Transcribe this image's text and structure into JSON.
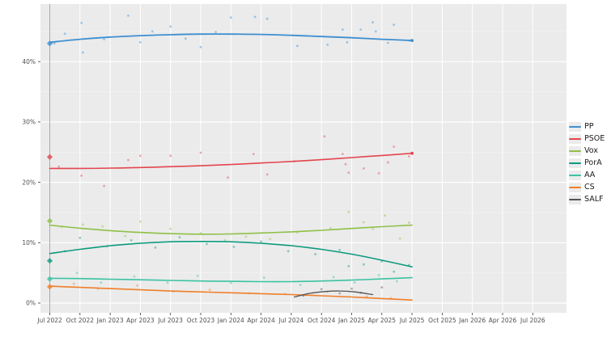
{
  "figure": {
    "title": "",
    "background": "#ffffff",
    "panel_background": "#ebebeb",
    "grid_major_color": "#ffffff",
    "grid_minor_color": "#f3f3f3",
    "axis_text_color": "#4f4f4f",
    "election_line_color": "#aaaaaa"
  },
  "chart_data": {
    "type": "scatter",
    "subtype": "poll-tracker with LOESS trend lines, poll scatter dots and election-result diamonds",
    "title": "",
    "xlabel": "",
    "ylabel": "",
    "x_tick_labels": [
      "Jul 2022",
      "Oct 2022",
      "Jan 2023",
      "Apr 2023",
      "Jul 2023",
      "Oct 2023",
      "Jan 2024",
      "Apr 2024",
      "Jul 2024",
      "Oct 2024",
      "Jan 2025",
      "Apr 2025",
      "Jul 2025",
      "Oct 2025",
      "Jan 2026",
      "Apr 2026",
      "Jul 2026"
    ],
    "y_tick_labels": [
      "0%",
      "10%",
      "20%",
      "30%",
      "40%"
    ],
    "y_tick_values": [
      0,
      10,
      20,
      30,
      40
    ],
    "ylim": [
      0,
      49.5
    ],
    "x_unit": "quarters since Jul 2022 (t=0 .. t=16)",
    "grid": true,
    "legend_position": "right-outside",
    "election_line_t": 0,
    "series": [
      {
        "name": "PP",
        "color": "#3d8fd1",
        "election_result": 43.0,
        "end_dot": 43.5,
        "trend_t": [
          0,
          1,
          2,
          3,
          4,
          5,
          6,
          7,
          8,
          9,
          10,
          11,
          12
        ],
        "trend": [
          43.2,
          43.7,
          44.05,
          44.3,
          44.45,
          44.55,
          44.55,
          44.5,
          44.35,
          44.15,
          43.95,
          43.7,
          43.5
        ],
        "scatter": [
          [
            0.15,
            43.0
          ],
          [
            0.5,
            44.6
          ],
          [
            1.05,
            46.4
          ],
          [
            1.1,
            41.5
          ],
          [
            1.8,
            43.7
          ],
          [
            2.6,
            47.6
          ],
          [
            3.0,
            43.2
          ],
          [
            3.4,
            45.0
          ],
          [
            4.0,
            45.8
          ],
          [
            4.5,
            43.8
          ],
          [
            5.0,
            42.4
          ],
          [
            5.5,
            44.9
          ],
          [
            6.0,
            47.3
          ],
          [
            6.8,
            47.4
          ],
          [
            7.2,
            47.1
          ],
          [
            8.2,
            42.6
          ],
          [
            9.2,
            42.8
          ],
          [
            9.7,
            45.3
          ],
          [
            9.85,
            43.2
          ],
          [
            10.3,
            45.3
          ],
          [
            10.7,
            46.5
          ],
          [
            10.8,
            45.0
          ],
          [
            11.2,
            43.1
          ],
          [
            11.4,
            46.1
          ],
          [
            11.9,
            43.5
          ]
        ]
      },
      {
        "name": "PSOE",
        "color": "#e4454f",
        "election_result": 24.2,
        "end_dot": 24.8,
        "trend_t": [
          0,
          1,
          2,
          3,
          4,
          5,
          6,
          7,
          8,
          9,
          10,
          11,
          12
        ],
        "trend": [
          22.3,
          22.3,
          22.35,
          22.45,
          22.6,
          22.75,
          22.95,
          23.2,
          23.45,
          23.75,
          24.1,
          24.45,
          24.8
        ],
        "scatter": [
          [
            0.3,
            22.6
          ],
          [
            1.05,
            21.1
          ],
          [
            1.8,
            19.4
          ],
          [
            2.6,
            23.7
          ],
          [
            3.0,
            24.4
          ],
          [
            4.0,
            24.4
          ],
          [
            5.0,
            24.9
          ],
          [
            5.9,
            20.8
          ],
          [
            6.75,
            24.7
          ],
          [
            7.2,
            21.3
          ],
          [
            8.1,
            23.5
          ],
          [
            9.1,
            27.6
          ],
          [
            9.7,
            24.7
          ],
          [
            9.8,
            23.0
          ],
          [
            9.9,
            21.6
          ],
          [
            10.4,
            22.3
          ],
          [
            10.9,
            21.5
          ],
          [
            11.2,
            23.3
          ],
          [
            11.4,
            25.9
          ],
          [
            11.9,
            24.3
          ]
        ]
      },
      {
        "name": "Vox",
        "color": "#8fc046",
        "election_result": 13.6,
        "end_dot": null,
        "trend_t": [
          0,
          1,
          2,
          3,
          4,
          5,
          6,
          7,
          8,
          9,
          10,
          11,
          12
        ],
        "trend": [
          12.9,
          12.4,
          12.0,
          11.7,
          11.5,
          11.4,
          11.45,
          11.6,
          11.8,
          12.05,
          12.35,
          12.65,
          12.9
        ],
        "scatter": [
          [
            0.4,
            12.6
          ],
          [
            1.1,
            13.0
          ],
          [
            1.75,
            12.7
          ],
          [
            2.5,
            11.1
          ],
          [
            3.0,
            13.5
          ],
          [
            4.0,
            12.3
          ],
          [
            5.0,
            11.6
          ],
          [
            5.8,
            10.4
          ],
          [
            6.5,
            11.0
          ],
          [
            7.3,
            10.6
          ],
          [
            8.2,
            11.7
          ],
          [
            9.3,
            12.4
          ],
          [
            9.9,
            15.1
          ],
          [
            10.4,
            13.4
          ],
          [
            10.7,
            12.3
          ],
          [
            11.1,
            14.5
          ],
          [
            11.6,
            10.7
          ],
          [
            11.9,
            13.3
          ]
        ]
      },
      {
        "name": "PorA",
        "color": "#0d9a7d",
        "election_result": 7.0,
        "end_dot": null,
        "trend_t": [
          0,
          1,
          2,
          3,
          4,
          5,
          6,
          7,
          8,
          9,
          10,
          11,
          12
        ],
        "trend": [
          8.2,
          8.9,
          9.5,
          9.9,
          10.15,
          10.2,
          10.15,
          9.9,
          9.5,
          8.9,
          8.1,
          7.1,
          6.0
        ],
        "scatter": [
          [
            0.5,
            8.6
          ],
          [
            1.0,
            10.8
          ],
          [
            1.9,
            9.4
          ],
          [
            2.7,
            10.4
          ],
          [
            3.5,
            9.2
          ],
          [
            4.3,
            10.9
          ],
          [
            5.2,
            9.8
          ],
          [
            6.1,
            9.3
          ],
          [
            7.0,
            10.2
          ],
          [
            7.9,
            8.6
          ],
          [
            8.8,
            8.1
          ],
          [
            9.6,
            8.8
          ],
          [
            9.9,
            6.1
          ],
          [
            10.4,
            6.4
          ],
          [
            11.0,
            6.9
          ],
          [
            11.4,
            5.2
          ],
          [
            11.9,
            6.3
          ]
        ]
      },
      {
        "name": "AA",
        "color": "#3bc3a2",
        "election_result": 4.0,
        "end_dot": null,
        "trend_t": [
          0,
          1,
          2,
          3,
          4,
          5,
          6,
          7,
          8,
          9,
          10,
          11,
          12
        ],
        "trend": [
          4.1,
          4.05,
          3.95,
          3.85,
          3.75,
          3.65,
          3.6,
          3.55,
          3.55,
          3.65,
          3.8,
          4.0,
          4.2
        ],
        "scatter": [
          [
            0.9,
            5.0
          ],
          [
            1.7,
            3.4
          ],
          [
            2.8,
            4.4
          ],
          [
            3.9,
            3.4
          ],
          [
            4.9,
            4.5
          ],
          [
            6.0,
            3.3
          ],
          [
            7.1,
            4.2
          ],
          [
            8.3,
            3.0
          ],
          [
            9.4,
            4.3
          ],
          [
            10.1,
            3.4
          ],
          [
            10.9,
            4.6
          ],
          [
            11.5,
            3.6
          ]
        ]
      },
      {
        "name": "CS",
        "color": "#ef7f2a",
        "election_result": 2.7,
        "end_dot": null,
        "trend_t": [
          0,
          1,
          2,
          3,
          4,
          5,
          6,
          7,
          8,
          9,
          10,
          11,
          12
        ],
        "trend": [
          2.8,
          2.6,
          2.4,
          2.2,
          2.0,
          1.85,
          1.7,
          1.55,
          1.4,
          1.2,
          1.0,
          0.75,
          0.5
        ],
        "scatter": [
          [
            0.8,
            3.2
          ],
          [
            1.6,
            2.4
          ],
          [
            2.9,
            2.9
          ],
          [
            4.1,
            1.9
          ],
          [
            5.3,
            2.2
          ],
          [
            6.6,
            1.6
          ],
          [
            7.8,
            1.5
          ],
          [
            9.2,
            1.9
          ],
          [
            10.5,
            1.1
          ],
          [
            11.3,
            0.8
          ]
        ]
      },
      {
        "name": "SALF",
        "color": "#555555",
        "election_result": null,
        "end_dot": null,
        "trend_t": [
          8.1,
          8.6,
          9.1,
          9.6,
          10.1,
          10.7
        ],
        "trend": [
          1.0,
          1.6,
          1.9,
          2.0,
          1.85,
          1.4
        ],
        "scatter": [
          [
            8.4,
            1.2
          ],
          [
            9.0,
            2.3
          ],
          [
            9.6,
            1.6
          ],
          [
            10.0,
            2.4
          ],
          [
            10.3,
            1.7
          ],
          [
            11.0,
            2.6
          ]
        ]
      }
    ]
  },
  "legend": {
    "items": [
      {
        "label": "PP",
        "color": "#3d8fd1"
      },
      {
        "label": "PSOE",
        "color": "#e4454f"
      },
      {
        "label": "Vox",
        "color": "#8fc046"
      },
      {
        "label": "PorA",
        "color": "#0d9a7d"
      },
      {
        "label": "AA",
        "color": "#3bc3a2"
      },
      {
        "label": "CS",
        "color": "#ef7f2a"
      },
      {
        "label": "SALF",
        "color": "#555555"
      }
    ]
  }
}
